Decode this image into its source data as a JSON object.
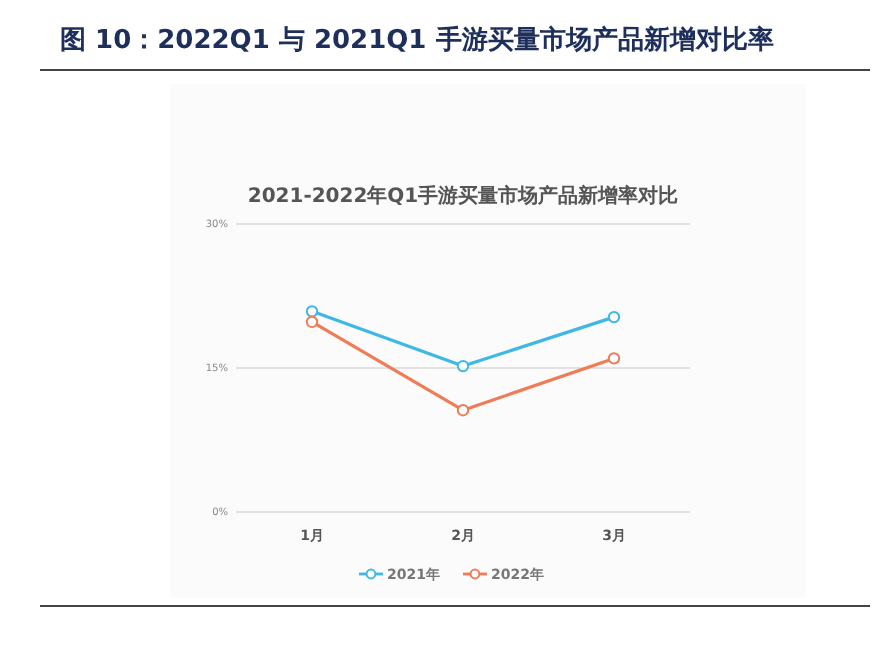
{
  "chart_data": {
    "type": "line",
    "title": "图 10：2022Q1 与 2021Q1 手游买量市场产品新增对比率",
    "subtitle": "2021-2022年Q1手游买量市场产品新增率对比",
    "categories": [
      "1月",
      "2月",
      "3月"
    ],
    "series": [
      {
        "name": "2021年",
        "color": "#3fb8e6",
        "values": [
          20.9,
          15.2,
          20.3
        ]
      },
      {
        "name": "2022年",
        "color": "#f07b57",
        "values": [
          19.8,
          10.6,
          16.0
        ]
      }
    ],
    "ylim": [
      0,
      30
    ],
    "yticks": [
      {
        "value": 0,
        "label": "0%"
      },
      {
        "value": 15,
        "label": "15%"
      },
      {
        "value": 30,
        "label": "30%"
      }
    ],
    "grid": "y",
    "legend": "bottom",
    "marker": "circle",
    "line_style": "solid"
  }
}
